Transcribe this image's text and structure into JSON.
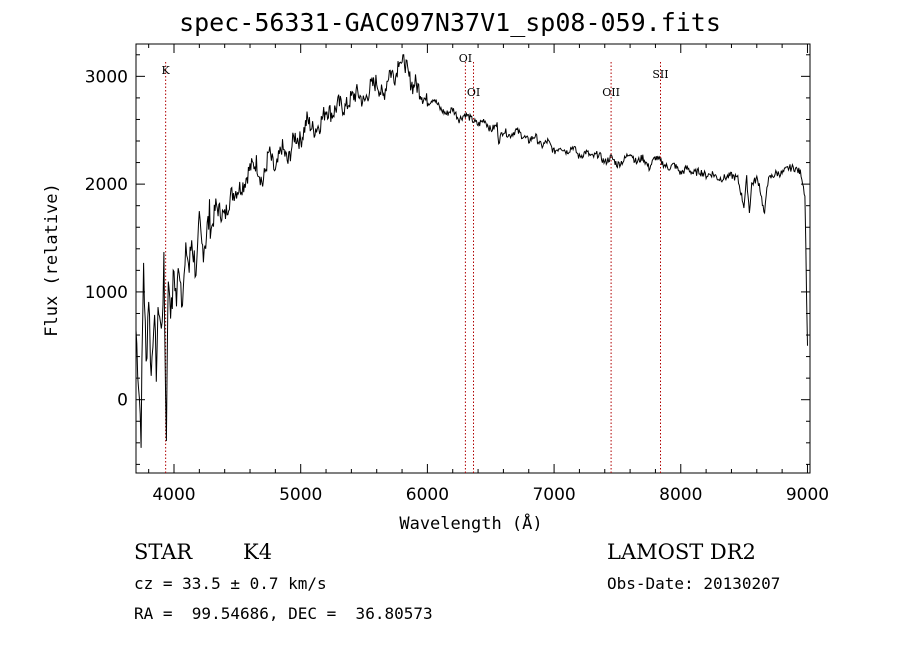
{
  "chart_data": {
    "type": "line",
    "title": "spec-56331-GAC097N37V1_sp08-059.fits",
    "xlabel": "Wavelength (Å)",
    "ylabel": "Flux (relative)",
    "xlim": [
      3700,
      9020
    ],
    "ylim": [
      -680,
      3300
    ],
    "xticks": [
      4000,
      5000,
      6000,
      7000,
      8000,
      9000
    ],
    "yticks": [
      0,
      1000,
      2000,
      3000
    ],
    "series": [
      {
        "name": "flux",
        "x": [
          3700,
          3720,
          3740,
          3760,
          3780,
          3800,
          3820,
          3840,
          3860,
          3880,
          3900,
          3920,
          3940,
          3950,
          3960,
          3980,
          4000,
          4020,
          4040,
          4060,
          4080,
          4100,
          4120,
          4140,
          4160,
          4180,
          4200,
          4220,
          4250,
          4280,
          4300,
          4330,
          4360,
          4400,
          4450,
          4500,
          4550,
          4600,
          4650,
          4700,
          4750,
          4800,
          4850,
          4900,
          4950,
          5000,
          5050,
          5100,
          5150,
          5200,
          5250,
          5300,
          5350,
          5400,
          5450,
          5500,
          5550,
          5600,
          5650,
          5700,
          5750,
          5780,
          5800,
          5820,
          5850,
          5890,
          5900,
          5950,
          6000,
          6050,
          6100,
          6150,
          6200,
          6250,
          6300,
          6350,
          6400,
          6450,
          6500,
          6550,
          6563,
          6600,
          6650,
          6700,
          6750,
          6800,
          6850,
          6900,
          6950,
          7000,
          7050,
          7100,
          7150,
          7200,
          7250,
          7300,
          7350,
          7400,
          7450,
          7500,
          7550,
          7600,
          7650,
          7700,
          7750,
          7800,
          7850,
          7900,
          7950,
          8000,
          8050,
          8100,
          8150,
          8200,
          8250,
          8300,
          8350,
          8400,
          8450,
          8498,
          8520,
          8542,
          8560,
          8600,
          8620,
          8662,
          8680,
          8700,
          8750,
          8800,
          8850,
          8900,
          8950,
          8980,
          9000
        ],
        "values": [
          650,
          200,
          -300,
          1300,
          300,
          1000,
          200,
          800,
          300,
          900,
          600,
          1200,
          -400,
          900,
          1100,
          800,
          1200,
          900,
          1300,
          1000,
          1100,
          1400,
          1200,
          1500,
          1300,
          1200,
          1600,
          1400,
          1500,
          1700,
          1600,
          1800,
          1750,
          1700,
          1900,
          1950,
          2000,
          2150,
          2200,
          2000,
          2300,
          2100,
          2350,
          2200,
          2450,
          2400,
          2600,
          2500,
          2550,
          2700,
          2650,
          2750,
          2700,
          2800,
          2850,
          2750,
          2900,
          2950,
          2800,
          3050,
          3000,
          3200,
          3100,
          3150,
          3000,
          2900,
          2950,
          2850,
          2750,
          2800,
          2700,
          2650,
          2700,
          2600,
          2650,
          2600,
          2550,
          2600,
          2500,
          2550,
          2400,
          2500,
          2450,
          2500,
          2450,
          2400,
          2450,
          2350,
          2400,
          2300,
          2350,
          2300,
          2350,
          2250,
          2300,
          2250,
          2280,
          2200,
          2250,
          2180,
          2220,
          2300,
          2200,
          2250,
          2150,
          2250,
          2200,
          2150,
          2180,
          2100,
          2150,
          2100,
          2120,
          2080,
          2100,
          2050,
          2060,
          2080,
          2050,
          1800,
          2050,
          1750,
          2000,
          2050,
          2000,
          1700,
          2000,
          2050,
          2100,
          2100,
          2150,
          2150,
          2100,
          1900,
          500
        ]
      }
    ],
    "lines": [
      {
        "label": "K",
        "x": 3934
      },
      {
        "label": "OI",
        "x": 6300
      },
      {
        "label": "OI",
        "x": 6364
      },
      {
        "label": "OII",
        "x": 7450
      },
      {
        "label": "SII",
        "x": 7840
      }
    ]
  },
  "info": {
    "object_class": "STAR",
    "subclass": "K4",
    "survey": "LAMOST DR2",
    "cz": "cz = 33.5 ± 0.7 km/s",
    "obs_date": "Obs-Date: 20130207",
    "coords": "RA =  99.54686, DEC =  36.80573"
  },
  "colors": {
    "spectrum": "#000000",
    "line_marker": "#b00000",
    "axis": "#000000"
  }
}
